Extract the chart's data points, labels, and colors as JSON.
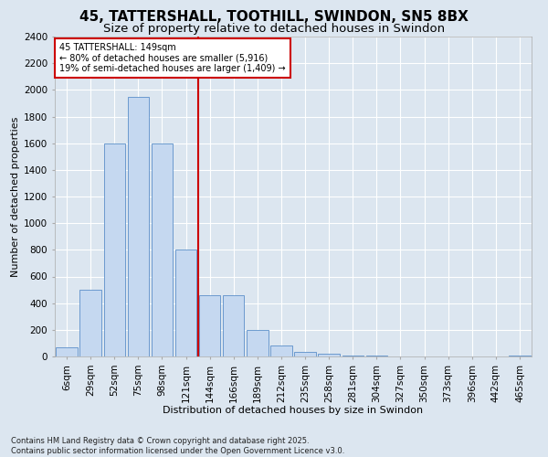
{
  "title": "45, TATTERSHALL, TOOTHILL, SWINDON, SN5 8BX",
  "subtitle": "Size of property relative to detached houses in Swindon",
  "xlabel": "Distribution of detached houses by size in Swindon",
  "ylabel": "Number of detached properties",
  "categories": [
    "6sqm",
    "29sqm",
    "52sqm",
    "75sqm",
    "98sqm",
    "121sqm",
    "144sqm",
    "166sqm",
    "189sqm",
    "212sqm",
    "235sqm",
    "258sqm",
    "281sqm",
    "304sqm",
    "327sqm",
    "350sqm",
    "373sqm",
    "396sqm",
    "442sqm",
    "465sqm"
  ],
  "values": [
    70,
    500,
    1600,
    1950,
    1600,
    800,
    460,
    460,
    200,
    80,
    35,
    20,
    10,
    7,
    3,
    2,
    1,
    1,
    0,
    10
  ],
  "bar_color": "#c5d8f0",
  "bar_edge_color": "#5b8fc9",
  "vline_x_index": 6,
  "vline_color": "#cc0000",
  "annotation_title": "45 TATTERSHALL: 149sqm",
  "annotation_line2": "← 80% of detached houses are smaller (5,916)",
  "annotation_line3": "19% of semi-detached houses are larger (1,409) →",
  "annotation_box_color": "#cc0000",
  "ylim": [
    0,
    2400
  ],
  "yticks": [
    0,
    200,
    400,
    600,
    800,
    1000,
    1200,
    1400,
    1600,
    1800,
    2000,
    2200,
    2400
  ],
  "footer_line1": "Contains HM Land Registry data © Crown copyright and database right 2025.",
  "footer_line2": "Contains public sector information licensed under the Open Government Licence v3.0.",
  "bg_color": "#dce6f0",
  "plot_bg_color": "#dce6f0",
  "title_fontsize": 11,
  "subtitle_fontsize": 9.5,
  "axis_label_fontsize": 8,
  "tick_fontsize": 7.5,
  "annotation_fontsize": 7,
  "footer_fontsize": 6
}
